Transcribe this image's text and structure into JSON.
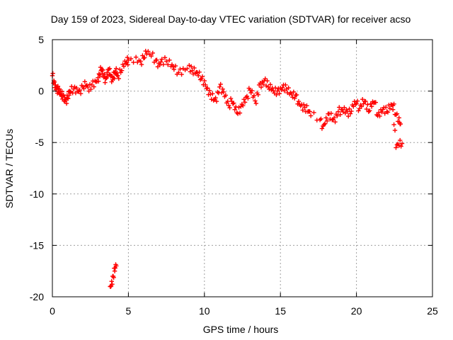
{
  "chart_data": {
    "type": "scatter",
    "title": "Day 159 of 2023, Sidereal Day-to-day VTEC variation (SDTVAR) for receiver acso",
    "xlabel": "GPS time / hours",
    "ylabel": "SDTVAR / TECUs",
    "xlim": [
      0,
      25
    ],
    "ylim": [
      -20,
      5
    ],
    "xticks": [
      0,
      5,
      10,
      15,
      20,
      25
    ],
    "xtick_labels": [
      "0",
      "5",
      "10",
      "15",
      "20",
      "25"
    ],
    "yticks": [
      5,
      0,
      -5,
      -10,
      -15,
      -20
    ],
    "ytick_labels": [
      "5",
      "0",
      "-5",
      "-10",
      "-15",
      "-20"
    ],
    "grid": true,
    "marker": "plus",
    "colors": {
      "series": "#ff0000",
      "grid": "#a0a0a0",
      "frame": "#000000"
    },
    "series": [
      {
        "name": "SDTVAR",
        "x": [
          0.0,
          0.1,
          0.2,
          0.3,
          0.4,
          0.5,
          0.6,
          0.7,
          0.8,
          0.9,
          1.0,
          1.1,
          1.2,
          1.4,
          1.6,
          1.8,
          2.0,
          2.2,
          2.4,
          2.6,
          2.8,
          3.0,
          3.1,
          3.2,
          3.3,
          3.4,
          3.5,
          3.6,
          3.7,
          3.8,
          3.9,
          4.0,
          4.1,
          4.2,
          4.3,
          4.5,
          4.7,
          4.9,
          5.0,
          5.5,
          5.8,
          6.0,
          6.2,
          6.5,
          6.8,
          7.0,
          7.2,
          7.5,
          7.8,
          8.0,
          8.3,
          8.6,
          9.0,
          9.2,
          9.4,
          9.6,
          9.8,
          10.0,
          10.2,
          10.4,
          10.6,
          10.8,
          11.0,
          11.2,
          11.4,
          11.6,
          11.8,
          12.0,
          12.2,
          12.4,
          12.6,
          12.8,
          13.0,
          13.2,
          13.4,
          13.6,
          13.8,
          14.0,
          14.2,
          14.4,
          14.6,
          14.8,
          15.0,
          15.2,
          15.4,
          15.6,
          15.8,
          16.0,
          16.2,
          16.4,
          16.6,
          16.8,
          17.0,
          17.6,
          17.8,
          18.0,
          18.2,
          18.4,
          18.6,
          18.8,
          19.0,
          19.2,
          19.4,
          19.6,
          19.8,
          20.0,
          20.2,
          20.4,
          20.6,
          20.8,
          21.0,
          21.2,
          21.4,
          21.6,
          21.8,
          22.0,
          22.2,
          22.4,
          22.6,
          22.8,
          22.9,
          22.4,
          22.6,
          22.8,
          23.0,
          3.8,
          3.9,
          4.0,
          4.1,
          4.2
        ],
        "y": [
          1.5,
          1.0,
          0.6,
          0.3,
          0.0,
          -0.3,
          -0.5,
          -0.4,
          -0.6,
          -0.8,
          -0.7,
          -0.4,
          -0.1,
          0.2,
          0.3,
          0.1,
          0.4,
          0.5,
          0.0,
          0.6,
          1.0,
          1.3,
          1.6,
          2.0,
          1.7,
          1.4,
          1.2,
          1.8,
          2.1,
          1.6,
          0.9,
          1.3,
          1.8,
          2.2,
          1.5,
          1.8,
          2.4,
          2.8,
          3.0,
          3.3,
          2.9,
          3.2,
          3.6,
          3.4,
          3.0,
          2.7,
          3.1,
          2.9,
          2.4,
          2.1,
          1.8,
          2.2,
          2.5,
          2.0,
          1.7,
          1.5,
          1.2,
          1.0,
          0.3,
          -0.3,
          -0.9,
          -1.0,
          0.4,
          0.2,
          -0.4,
          -1.4,
          -1.0,
          -1.8,
          -2.2,
          -1.5,
          -0.8,
          -0.5,
          0.1,
          -0.6,
          -1.2,
          0.6,
          0.9,
          1.2,
          0.4,
          0.1,
          -0.2,
          0.0,
          0.3,
          0.6,
          0.2,
          -0.3,
          -0.6,
          -0.4,
          -1.0,
          -1.3,
          -1.6,
          -2.0,
          -2.4,
          -2.8,
          -3.4,
          -2.6,
          -2.2,
          -2.8,
          -3.0,
          -2.0,
          -1.8,
          -1.6,
          -2.0,
          -2.2,
          -1.5,
          -1.2,
          -1.7,
          -0.8,
          -1.0,
          -2.0,
          -1.5,
          -1.1,
          -2.4,
          -1.8,
          -1.6,
          -2.0,
          -1.7,
          -1.4,
          -2.3,
          -2.6,
          -3.2,
          -1.8,
          -5.5,
          -5.3,
          -5.1,
          -19.0,
          -18.5,
          -18.0,
          -17.5,
          -17.0
        ]
      }
    ]
  }
}
